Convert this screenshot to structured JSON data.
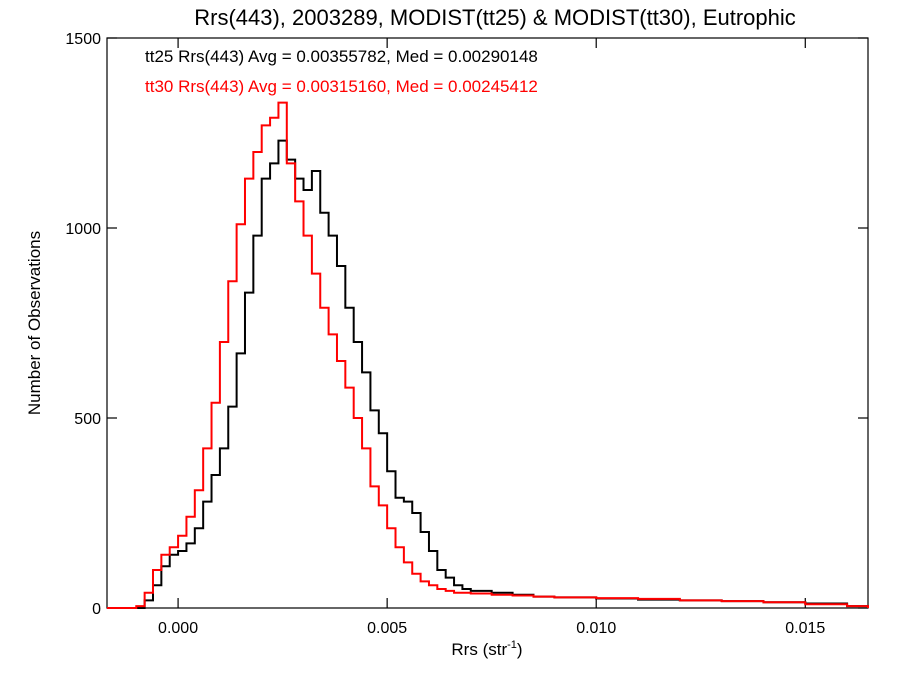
{
  "chart_data": {
    "type": "line",
    "step": true,
    "title": "Rrs(443), 2003289, MODIST(tt25) & MODIST(tt30), Eutrophic",
    "xlabel_main": "Rrs (str",
    "xlabel_sup": "-1",
    "xlabel_close": ")",
    "ylabel": "Number of Observations",
    "xlim": [
      -0.0017,
      0.0165
    ],
    "ylim": [
      0,
      1500
    ],
    "xticks": [
      0.0,
      0.005,
      0.01,
      0.015
    ],
    "xtick_labels": [
      "0.000",
      "0.005",
      "0.010",
      "0.015"
    ],
    "yticks": [
      0,
      500,
      1000,
      1500
    ],
    "ytick_labels": [
      "0",
      "500",
      "1000",
      "1500"
    ],
    "legend": [
      {
        "text": "tt25 Rrs(443) Avg = 0.00355782, Med = 0.00290148",
        "color": "#000000"
      },
      {
        "text": "tt30 Rrs(443) Avg = 0.00315160, Med = 0.00245412",
        "color": "#ff0000"
      }
    ],
    "series": [
      {
        "color": "#000000",
        "x": [
          -0.0017,
          -0.0012,
          -0.001,
          -0.0008,
          -0.0006,
          -0.0004,
          -0.0002,
          0.0,
          0.0002,
          0.0004,
          0.0006,
          0.0008,
          0.001,
          0.0012,
          0.0014,
          0.0016,
          0.0018,
          0.002,
          0.0022,
          0.0024,
          0.0026,
          0.0028,
          0.003,
          0.0032,
          0.0034,
          0.0036,
          0.0038,
          0.004,
          0.0042,
          0.0044,
          0.0046,
          0.0048,
          0.005,
          0.0052,
          0.0054,
          0.0056,
          0.0058,
          0.006,
          0.0062,
          0.0064,
          0.0066,
          0.0068,
          0.007,
          0.0075,
          0.008,
          0.0085,
          0.009,
          0.01,
          0.011,
          0.012,
          0.013,
          0.014,
          0.015,
          0.016,
          0.0165
        ],
        "y": [
          0,
          0,
          0,
          20,
          60,
          110,
          140,
          150,
          170,
          210,
          280,
          350,
          420,
          530,
          670,
          830,
          980,
          1130,
          1170,
          1230,
          1180,
          1130,
          1100,
          1150,
          1040,
          980,
          900,
          790,
          700,
          620,
          520,
          460,
          360,
          290,
          280,
          250,
          200,
          150,
          100,
          80,
          60,
          50,
          45,
          40,
          35,
          30,
          28,
          25,
          22,
          20,
          18,
          15,
          12,
          5,
          0
        ]
      },
      {
        "color": "#ff0000",
        "x": [
          -0.0017,
          -0.0012,
          -0.001,
          -0.0008,
          -0.0006,
          -0.0004,
          -0.0002,
          0.0,
          0.0002,
          0.0004,
          0.0006,
          0.0008,
          0.001,
          0.0012,
          0.0014,
          0.0016,
          0.0018,
          0.002,
          0.0022,
          0.0024,
          0.0026,
          0.0028,
          0.003,
          0.0032,
          0.0034,
          0.0036,
          0.0038,
          0.004,
          0.0042,
          0.0044,
          0.0046,
          0.0048,
          0.005,
          0.0052,
          0.0054,
          0.0056,
          0.0058,
          0.006,
          0.0062,
          0.0064,
          0.0066,
          0.0068,
          0.007,
          0.0075,
          0.008,
          0.0085,
          0.009,
          0.01,
          0.011,
          0.012,
          0.013,
          0.014,
          0.015,
          0.016,
          0.0165
        ],
        "y": [
          0,
          0,
          5,
          40,
          100,
          140,
          160,
          190,
          240,
          310,
          420,
          540,
          700,
          860,
          1010,
          1130,
          1200,
          1270,
          1290,
          1330,
          1170,
          1070,
          980,
          880,
          790,
          720,
          650,
          580,
          500,
          420,
          320,
          270,
          210,
          160,
          120,
          90,
          70,
          60,
          50,
          45,
          40,
          40,
          38,
          35,
          33,
          30,
          28,
          26,
          24,
          20,
          18,
          15,
          10,
          5,
          0
        ]
      }
    ]
  }
}
